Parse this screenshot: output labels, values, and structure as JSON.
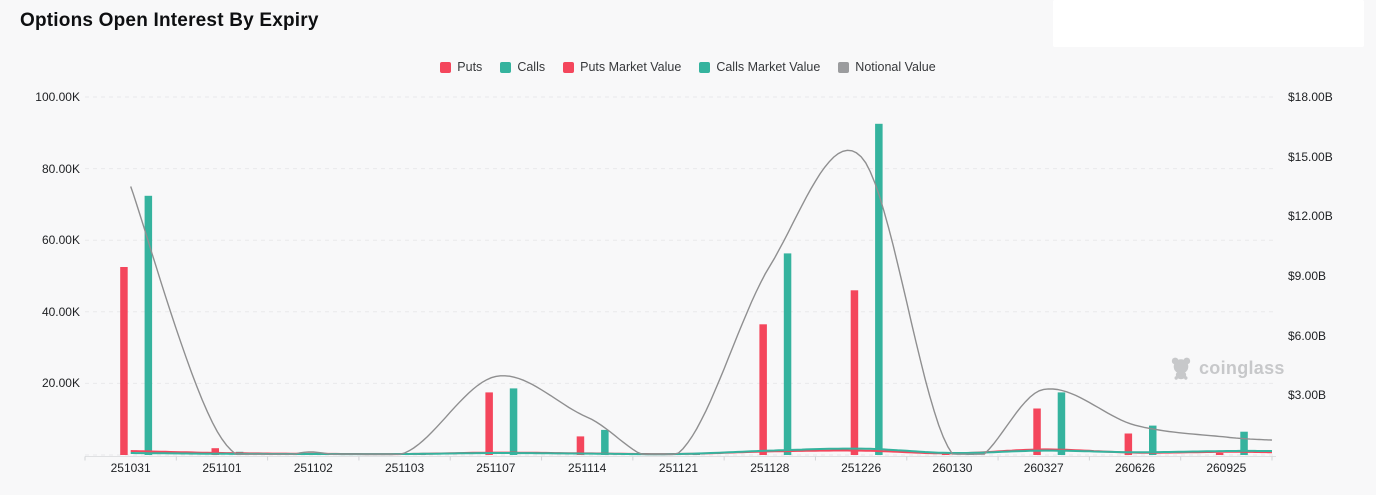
{
  "header": {
    "title": "Options Open Interest By Expiry"
  },
  "legend": {
    "items": [
      {
        "label": "Puts",
        "color": "#f4465c"
      },
      {
        "label": "Calls",
        "color": "#35b39e"
      },
      {
        "label": "Puts Market Value",
        "color": "#f4465c"
      },
      {
        "label": "Calls Market Value",
        "color": "#35b39e"
      },
      {
        "label": "Notional Value",
        "color": "#9b9c9e"
      }
    ]
  },
  "watermark": {
    "text": "coinglass"
  },
  "colors": {
    "background": "#f8f8f9",
    "puts": "#f4465c",
    "calls": "#35b39e",
    "notional": "#8f8f90",
    "grid": "#e9e9eb",
    "axis_text": "#1d1f22"
  },
  "chart_data": {
    "type": "bar",
    "subtype": "grouped bars + smooth lines (dual axis)",
    "categories": [
      "251031",
      "251101",
      "251102",
      "251103",
      "251107",
      "251114",
      "251121",
      "251128",
      "251226",
      "260130",
      "260327",
      "260626",
      "260925"
    ],
    "series": [
      {
        "name": "Puts",
        "type": "bar",
        "axis": "left",
        "unit": "K contracts",
        "color": "#f4465c",
        "values": [
          52.5,
          1.9,
          0.2,
          0.15,
          17.5,
          5.2,
          0.1,
          36.5,
          46.0,
          0.25,
          13.0,
          6.0,
          0.6
        ]
      },
      {
        "name": "Calls",
        "type": "bar",
        "axis": "left",
        "unit": "K contracts",
        "color": "#35b39e",
        "values": [
          72.4,
          0.9,
          0.3,
          0.4,
          18.6,
          7.0,
          0.2,
          56.3,
          92.5,
          0.3,
          17.5,
          8.2,
          6.5
        ]
      },
      {
        "name": "Puts Market Value",
        "type": "line",
        "axis": "right",
        "unit": "$B",
        "color": "#f4465c",
        "values": [
          0.2,
          0.1,
          0.06,
          0.05,
          0.12,
          0.08,
          0.05,
          0.18,
          0.22,
          0.08,
          0.28,
          0.12,
          0.16
        ]
      },
      {
        "name": "Calls Market Value",
        "type": "line",
        "axis": "right",
        "unit": "$B",
        "color": "#35b39e",
        "values": [
          0.1,
          0.06,
          0.05,
          0.05,
          0.1,
          0.07,
          0.05,
          0.22,
          0.32,
          0.1,
          0.22,
          0.14,
          0.2
        ]
      },
      {
        "name": "Notional Value",
        "type": "line",
        "axis": "right",
        "unit": "$B",
        "color": "#8f8f90",
        "values": [
          13.5,
          0.8,
          0.15,
          0.1,
          3.95,
          1.9,
          0.1,
          9.5,
          15.0,
          0.05,
          3.3,
          1.5,
          0.9
        ]
      }
    ],
    "left_axis": {
      "max": 100,
      "unit": "K",
      "ticks": [
        {
          "label": "100.00K",
          "value": 100
        },
        {
          "label": "80.00K",
          "value": 80
        },
        {
          "label": "60.00K",
          "value": 60
        },
        {
          "label": "40.00K",
          "value": 40
        },
        {
          "label": "20.00K",
          "value": 20
        }
      ]
    },
    "right_axis": {
      "max": 18,
      "unit": "$B",
      "ticks": [
        {
          "label": "$18.00B",
          "value": 18
        },
        {
          "label": "$15.00B",
          "value": 15
        },
        {
          "label": "$12.00B",
          "value": 12
        },
        {
          "label": "$9.00B",
          "value": 9
        },
        {
          "label": "$6.00B",
          "value": 6
        },
        {
          "label": "$3.00B",
          "value": 3
        }
      ]
    },
    "grid": true,
    "legend_position": "top-center"
  }
}
